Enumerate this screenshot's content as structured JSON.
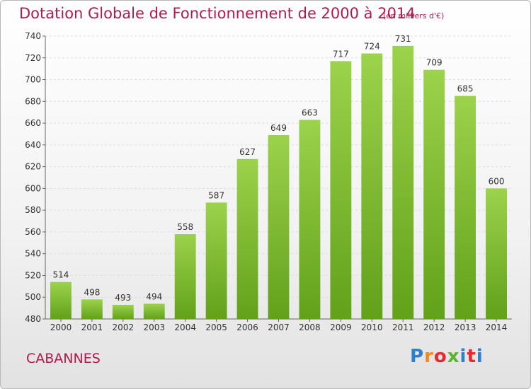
{
  "header": {
    "title": "Dotation Globale de Fonctionnement de 2000 à 2014",
    "subtitle": "(en milliers d'€)"
  },
  "footer": {
    "place": "CABANNES",
    "logo_text": "Proxiti"
  },
  "colors": {
    "accent": "#b5184f",
    "bar_top": "#9cd24c",
    "bar_bottom": "#62a11a"
  },
  "chart_data": {
    "type": "bar",
    "title": "Dotation Globale de Fonctionnement de 2000 à 2014",
    "subtitle": "(en milliers d'€)",
    "xlabel": "",
    "ylabel": "",
    "categories": [
      "2000",
      "2001",
      "2002",
      "2003",
      "2004",
      "2005",
      "2006",
      "2007",
      "2008",
      "2009",
      "2010",
      "2011",
      "2012",
      "2013",
      "2014"
    ],
    "values": [
      514,
      498,
      493,
      494,
      558,
      587,
      627,
      649,
      663,
      717,
      724,
      731,
      709,
      685,
      600
    ],
    "ylim": [
      480,
      740
    ],
    "yticks": [
      480,
      500,
      520,
      540,
      560,
      580,
      600,
      620,
      640,
      660,
      680,
      700,
      720,
      740
    ],
    "grid": true,
    "data_labels": true
  }
}
